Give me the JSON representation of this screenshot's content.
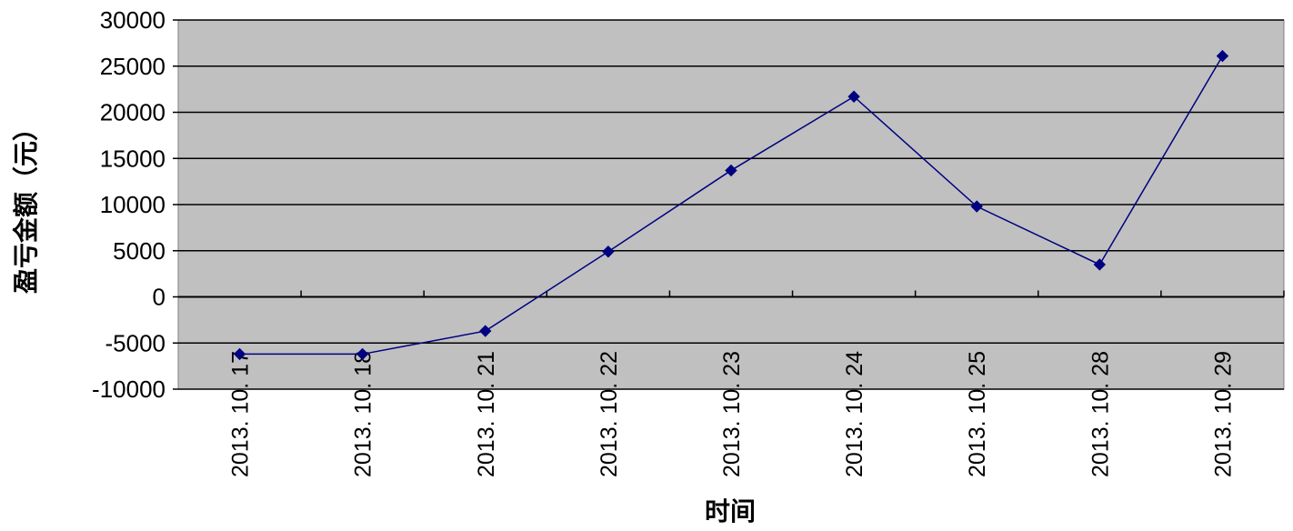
{
  "colors": {
    "plot_background": "#c0c0c0",
    "gridline": "#000000",
    "series_line": "#000080",
    "marker": "#000080"
  },
  "chart_data": {
    "type": "line",
    "title": "",
    "xlabel": "时间",
    "ylabel": "盈亏金额（元）",
    "ylim": [
      -10000,
      30000
    ],
    "yticks": [
      30000,
      25000,
      20000,
      15000,
      10000,
      5000,
      0,
      -5000,
      -10000
    ],
    "ytick_labels": [
      "30000",
      "25000",
      "20000",
      "15000",
      "10000",
      "5000",
      "0",
      "-5000",
      "-10000"
    ],
    "grid": true,
    "legend": "none",
    "marker": "diamond",
    "categories": [
      "2013. 10. 17",
      "2013. 10. 18",
      "2013. 10. 21",
      "2013. 10. 22",
      "2013. 10. 23",
      "2013. 10. 24",
      "2013. 10. 25",
      "2013. 10. 28",
      "2013. 10. 29"
    ],
    "series": [
      {
        "values": [
          -6200,
          -6200,
          -3700,
          4900,
          13700,
          21700,
          9800,
          3500,
          26100
        ]
      }
    ]
  }
}
